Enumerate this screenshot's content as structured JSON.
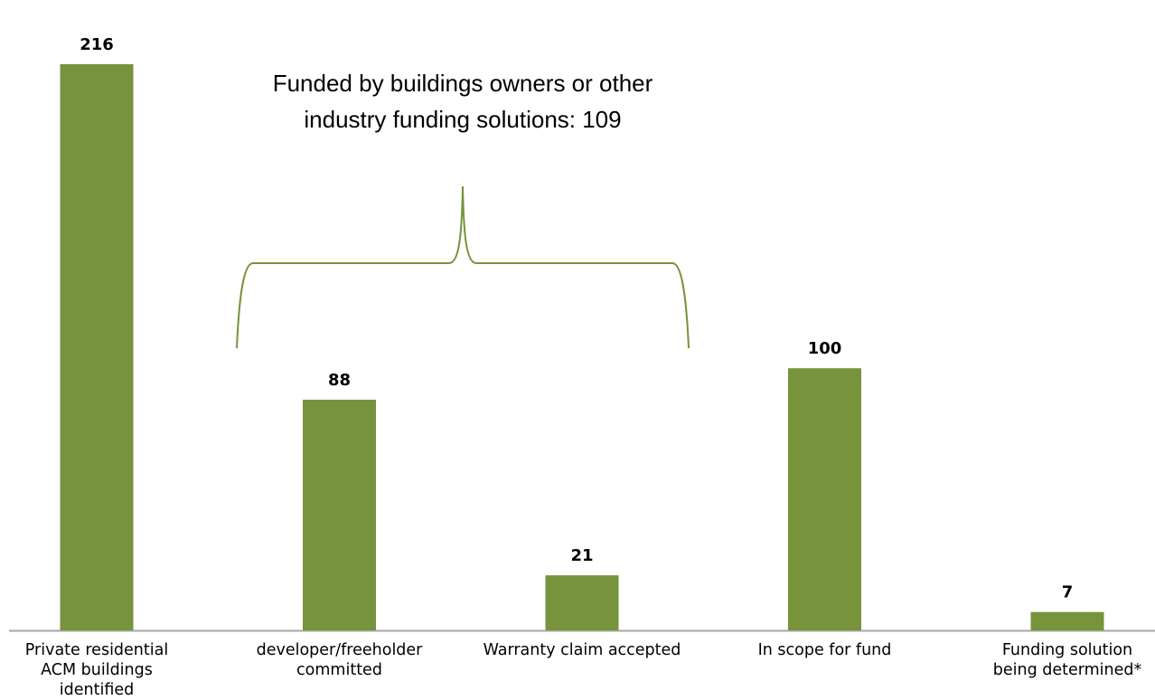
{
  "chart_data": {
    "type": "bar",
    "categories": [
      "Private residential ACM buildings identified",
      "developer/freeholder committed",
      "Warranty claim accepted",
      "In scope for fund",
      "Funding solution being determined*"
    ],
    "values": [
      216,
      88,
      21,
      100,
      7
    ],
    "color": "#77933c",
    "annotation": "Funded by buildings owners or other industry funding solutions: 109"
  }
}
